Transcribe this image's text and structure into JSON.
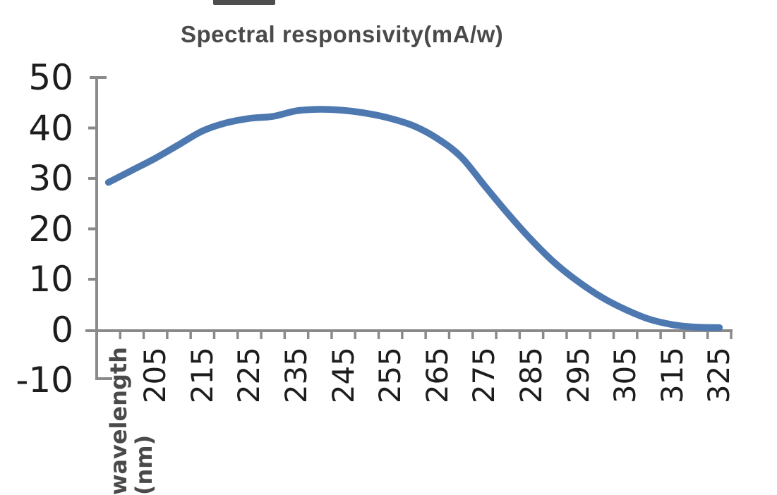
{
  "page": {
    "background": "#ffffff"
  },
  "artifact": {
    "top_bar_color": "#3e3e3e"
  },
  "chart_data": {
    "type": "line",
    "title": "Spectral responsivity(mA/w)",
    "grid": false,
    "legend": false,
    "axis_color": "#8a8a8a",
    "tick_label_color": "#1d1d1d",
    "title_color": "#4a4a4a",
    "x_axis": {
      "label": "wavelength\n(nm)",
      "tick_labels": [
        "205",
        "215",
        "225",
        "235",
        "245",
        "255",
        "265",
        "275",
        "285",
        "295",
        "305",
        "315",
        "325"
      ],
      "minor_tick_step_nm": 5,
      "labels_rotated_deg": -90
    },
    "y_axis": {
      "tick_labels": [
        "50",
        "40",
        "30",
        "20",
        "10",
        "0",
        "-10"
      ],
      "ticks": [
        50,
        40,
        30,
        20,
        10,
        0,
        -10
      ],
      "range": [
        -10,
        50
      ]
    },
    "series": [
      {
        "name": "Spectral responsivity",
        "color": "#4d78b0",
        "x_nm": [
          195,
          200,
          205,
          210,
          215,
          220,
          225,
          230,
          235,
          240,
          245,
          250,
          255,
          260,
          265,
          270,
          275,
          280,
          285,
          290,
          295,
          300,
          305,
          310,
          315,
          320,
          325
        ],
        "y_mA_per_W": [
          29.2,
          31.6,
          34.0,
          36.7,
          39.4,
          41.0,
          41.9,
          42.3,
          43.4,
          43.7,
          43.5,
          42.9,
          41.9,
          40.4,
          37.9,
          34.3,
          28.6,
          23.0,
          17.8,
          13.2,
          9.5,
          6.4,
          4.0,
          2.1,
          1.0,
          0.5,
          0.4
        ]
      }
    ]
  }
}
